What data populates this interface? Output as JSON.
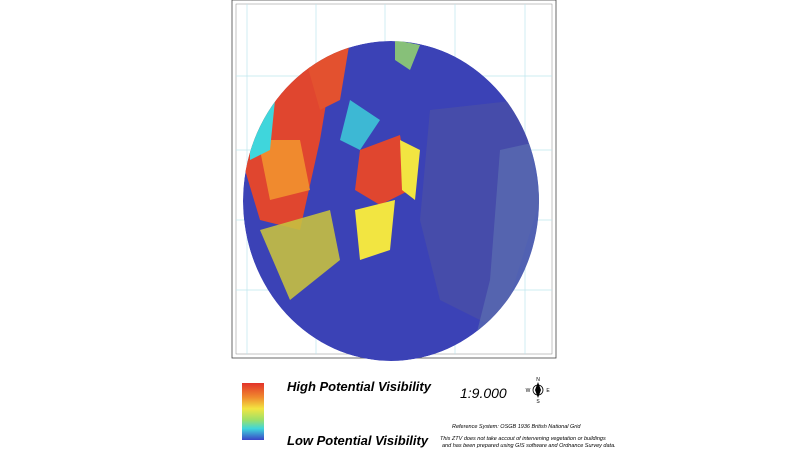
{
  "legend": {
    "high": "High Potential Visibility",
    "low": "Low Potential Visibility"
  },
  "scale": "1:9.000",
  "compass": {
    "north": "N",
    "east": "E",
    "south": "S",
    "west": "W"
  },
  "reference": "Reference System: OSGB 1936 British National Grid",
  "disclaimer": [
    "This ZTV does not take accout of intervening vegetation or buildings",
    "and has been prepared using GIS software and Ordnance Survey data."
  ]
}
